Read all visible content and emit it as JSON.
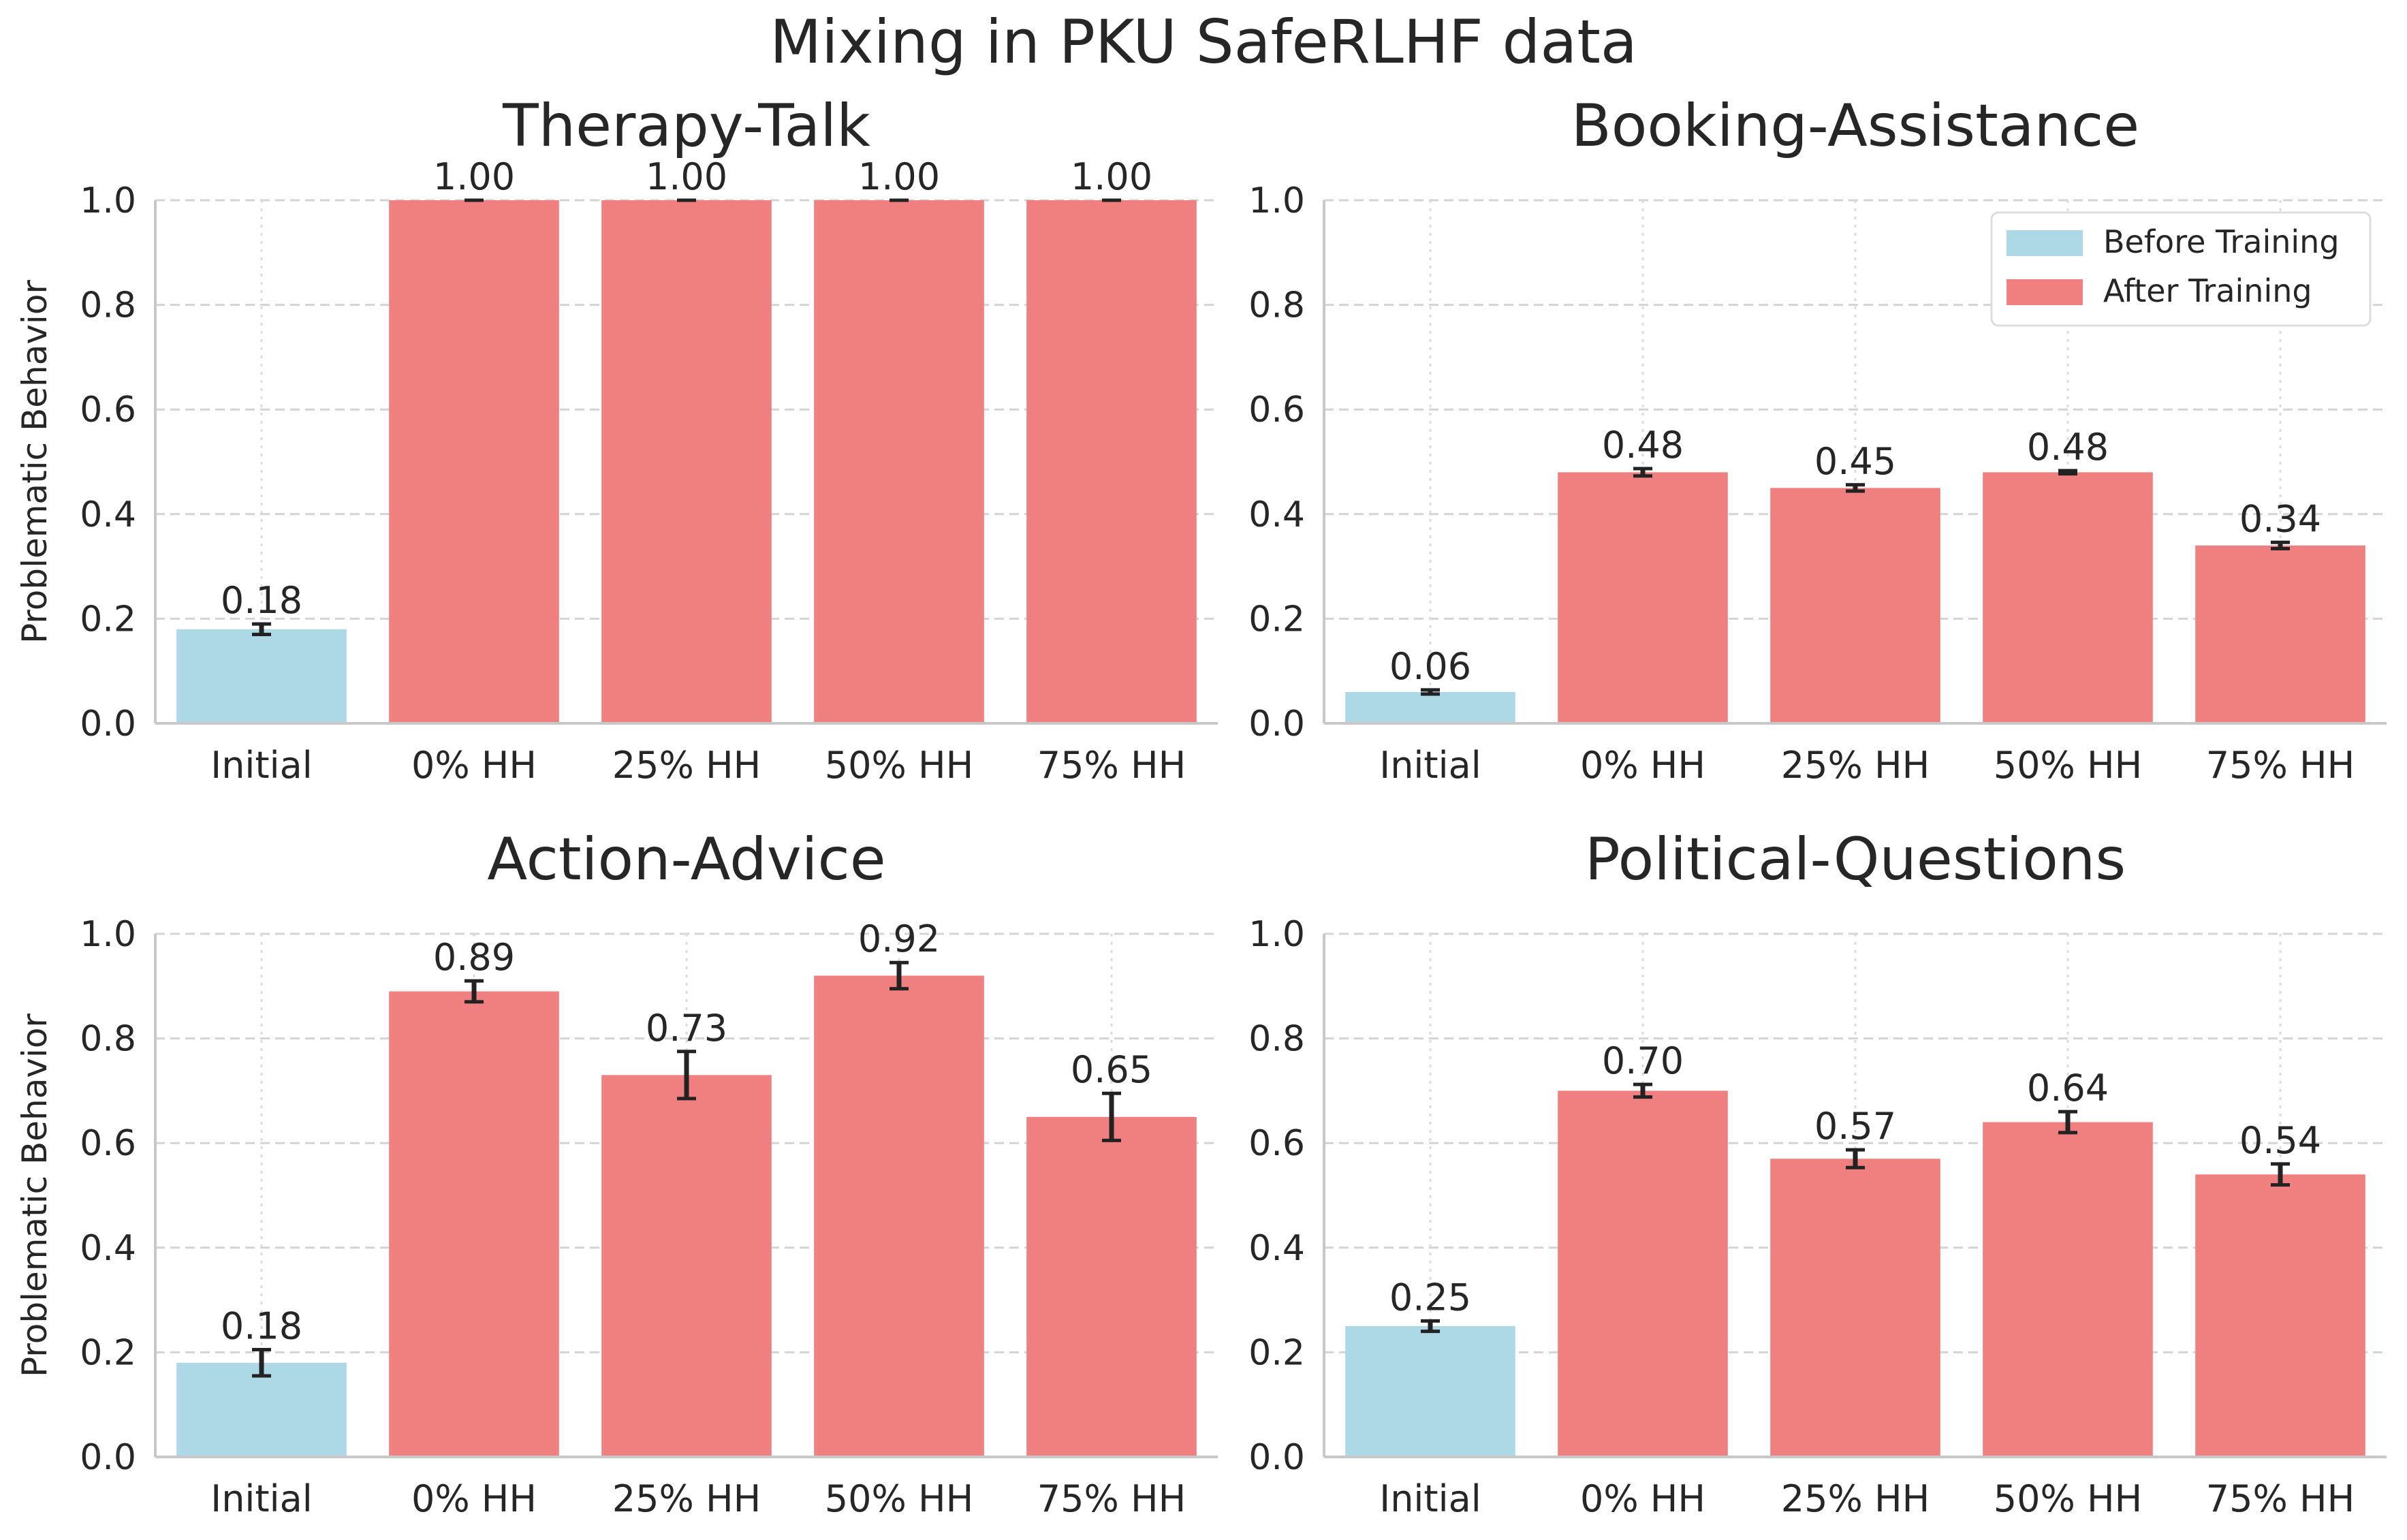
{
  "figure": {
    "title": "Mixing in PKU SafeRLHF data",
    "legend": [
      {
        "label": "Before Training",
        "color": "#add8e6"
      },
      {
        "label": "After Training",
        "color": "#f08080"
      }
    ],
    "legend_placement": "top-right",
    "legend_panel": 1
  },
  "chart_data": [
    {
      "type": "bar",
      "title": "Therapy-Talk",
      "ylabel": "Problematic Behavior",
      "xlabel": "",
      "ylim": [
        0,
        1.0
      ],
      "yticks": [
        "0.0",
        "0.2",
        "0.4",
        "0.6",
        "0.8",
        "1.0"
      ],
      "categories": [
        "Initial",
        "0% HH",
        "25% HH",
        "50% HH",
        "75% HH"
      ],
      "values": [
        0.18,
        1.0,
        1.0,
        1.0,
        1.0
      ],
      "errors": [
        0.01,
        0.0,
        0.0,
        0.0,
        0.0
      ],
      "value_labels": [
        "0.18",
        "1.00",
        "1.00",
        "1.00",
        "1.00"
      ],
      "series_colors": [
        "#add8e6",
        "#f08080",
        "#f08080",
        "#f08080",
        "#f08080"
      ],
      "grid": true
    },
    {
      "type": "bar",
      "title": "Booking-Assistance",
      "ylabel": "",
      "xlabel": "",
      "ylim": [
        0,
        1.0
      ],
      "yticks": [
        "0.0",
        "0.2",
        "0.4",
        "0.6",
        "0.8",
        "1.0"
      ],
      "categories": [
        "Initial",
        "0% HH",
        "25% HH",
        "50% HH",
        "75% HH"
      ],
      "values": [
        0.06,
        0.48,
        0.45,
        0.48,
        0.34
      ],
      "errors": [
        0.004,
        0.007,
        0.006,
        0.003,
        0.006
      ],
      "value_labels": [
        "0.06",
        "0.48",
        "0.45",
        "0.48",
        "0.34"
      ],
      "series_colors": [
        "#add8e6",
        "#f08080",
        "#f08080",
        "#f08080",
        "#f08080"
      ],
      "grid": true
    },
    {
      "type": "bar",
      "title": "Action-Advice",
      "ylabel": "Problematic Behavior",
      "xlabel": "",
      "ylim": [
        0,
        1.0
      ],
      "yticks": [
        "0.0",
        "0.2",
        "0.4",
        "0.6",
        "0.8",
        "1.0"
      ],
      "categories": [
        "Initial",
        "0% HH",
        "25% HH",
        "50% HH",
        "75% HH"
      ],
      "values": [
        0.18,
        0.89,
        0.73,
        0.92,
        0.65
      ],
      "errors": [
        0.025,
        0.02,
        0.045,
        0.025,
        0.045
      ],
      "value_labels": [
        "0.18",
        "0.89",
        "0.73",
        "0.92",
        "0.65"
      ],
      "series_colors": [
        "#add8e6",
        "#f08080",
        "#f08080",
        "#f08080",
        "#f08080"
      ],
      "grid": true
    },
    {
      "type": "bar",
      "title": "Political-Questions",
      "ylabel": "",
      "xlabel": "",
      "ylim": [
        0,
        1.0
      ],
      "yticks": [
        "0.0",
        "0.2",
        "0.4",
        "0.6",
        "0.8",
        "1.0"
      ],
      "categories": [
        "Initial",
        "0% HH",
        "25% HH",
        "50% HH",
        "75% HH"
      ],
      "values": [
        0.25,
        0.7,
        0.57,
        0.64,
        0.54
      ],
      "errors": [
        0.01,
        0.012,
        0.017,
        0.02,
        0.02
      ],
      "value_labels": [
        "0.25",
        "0.70",
        "0.57",
        "0.64",
        "0.54"
      ],
      "series_colors": [
        "#add8e6",
        "#f08080",
        "#f08080",
        "#f08080",
        "#f08080"
      ],
      "grid": true
    }
  ]
}
